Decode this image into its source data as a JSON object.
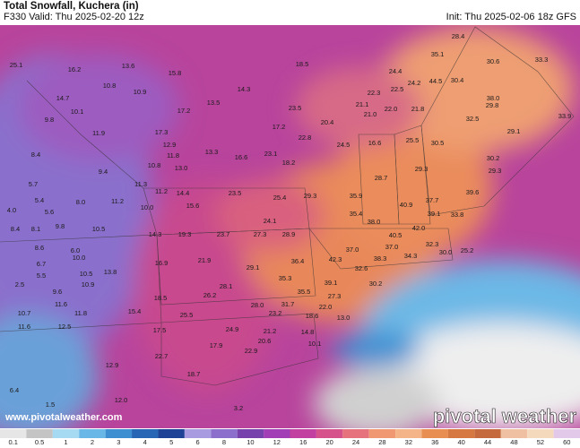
{
  "header": {
    "title": "Total Snowfall, Kuchera (in)",
    "valid": "F330 Valid: Thu 2025-02-20 12z",
    "init": "Init: Thu 2025-02-06 18z GFS"
  },
  "watermark": "www.pivotalweather.com",
  "logo": "pivotal weather",
  "map_labels": [
    "25.1",
    "16.2",
    "13.6",
    "15.8",
    "18.5",
    "28.4",
    "35.1",
    "30.6",
    "33.3",
    "24.4",
    "10.8",
    "10.9",
    "14.3",
    "22.3",
    "22.5",
    "24.2",
    "44.5",
    "30.4",
    "14.7",
    "13.5",
    "23.5",
    "21.1",
    "38.0",
    "10.1",
    "17.2",
    "22.0",
    "21.8",
    "29.8",
    "33.9",
    "9.8",
    "20.4",
    "21.0",
    "32.5",
    "11.9",
    "17.3",
    "17.2",
    "22.8",
    "29.1",
    "12.9",
    "24.5",
    "16.6",
    "25.5",
    "30.5",
    "11.8",
    "13.3",
    "16.6",
    "23.1",
    "18.2",
    "30.2",
    "8.4",
    "10.8",
    "13.0",
    "29.3",
    "29.3",
    "9.4",
    "28.7",
    "39.6",
    "5.7",
    "11.3",
    "11.2",
    "14.4",
    "23.5",
    "25.4",
    "29.3",
    "35.9",
    "37.7",
    "5.4",
    "8.0",
    "11.2",
    "15.6",
    "40.9",
    "39.1",
    "33.8",
    "4.0",
    "5.6",
    "10.0",
    "35.4",
    "24.1",
    "38.0",
    "42.0",
    "8.4",
    "8.1",
    "9.8",
    "10.5",
    "14.3",
    "19.3",
    "23.7",
    "27.3",
    "28.9",
    "40.5",
    "37.0",
    "37.0",
    "32.3",
    "8.6",
    "6.0",
    "38.3",
    "34.3",
    "30.0",
    "25.2",
    "6.7",
    "10.0",
    "16.9",
    "21.9",
    "36.4",
    "42.3",
    "32.6",
    "5.5",
    "10.5",
    "13.8",
    "29.1",
    "2.5",
    "9.6",
    "10.9",
    "28.1",
    "35.3",
    "39.1",
    "30.2",
    "26.2",
    "35.5",
    "27.3",
    "11.6",
    "18.5",
    "31.7",
    "28.0",
    "22.0",
    "10.7",
    "11.8",
    "15.4",
    "25.5",
    "23.2",
    "18.6",
    "13.0",
    "11.6",
    "12.5",
    "17.5",
    "24.9",
    "21.2",
    "14.8",
    "10.1",
    "20.6",
    "17.9",
    "22.7",
    "22.9",
    "12.9",
    "18.7",
    "6.4",
    "12.0",
    "3.2",
    "1.5"
  ],
  "colorbar": {
    "labels": [
      "0.1",
      "0.5",
      "1",
      "2",
      "3",
      "4",
      "5",
      "6",
      "8",
      "10",
      "12",
      "16",
      "20",
      "24",
      "28",
      "32",
      "36",
      "40",
      "44",
      "48",
      "52",
      "60"
    ],
    "colors": [
      "#e6e6e6",
      "#c4c4c4",
      "#a6d9f2",
      "#69b7e6",
      "#3d8fd1",
      "#2766b5",
      "#1d4296",
      "#a99be0",
      "#8c6fcc",
      "#7842ad",
      "#a23fb6",
      "#c2409f",
      "#d6528b",
      "#e6727e",
      "#ef9872",
      "#f4b487",
      "#e88e52",
      "#d67842",
      "#c56a3e",
      "#f0c0a2",
      "#f5d9bc",
      "#e2c9ea"
    ]
  }
}
